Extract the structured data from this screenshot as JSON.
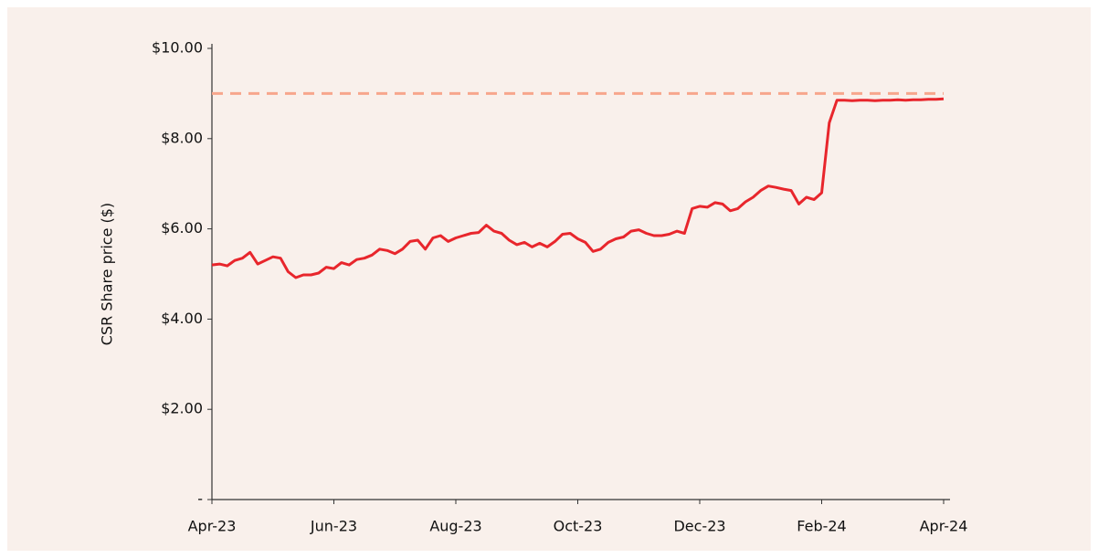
{
  "chart_data": {
    "type": "line",
    "y_label": "CSR Share price ($)",
    "categories": [
      "Apr-23",
      null,
      null,
      null,
      null,
      null,
      null,
      null,
      null,
      null,
      null,
      null,
      null,
      null,
      null,
      null,
      "Jun-23",
      null,
      null,
      null,
      null,
      null,
      null,
      null,
      null,
      null,
      null,
      null,
      null,
      null,
      null,
      null,
      "Aug-23",
      null,
      null,
      null,
      null,
      null,
      null,
      null,
      null,
      null,
      null,
      null,
      null,
      null,
      null,
      null,
      "Oct-23",
      null,
      null,
      null,
      null,
      null,
      null,
      null,
      null,
      null,
      null,
      null,
      null,
      null,
      null,
      null,
      "Dec-23",
      null,
      null,
      null,
      null,
      null,
      null,
      null,
      null,
      null,
      null,
      null,
      null,
      null,
      null,
      null,
      "Feb-24",
      null,
      null,
      null,
      null,
      null,
      null,
      null,
      null,
      null,
      null,
      null,
      null,
      null,
      null,
      null,
      "Apr-24"
    ],
    "series": [
      {
        "name": "CSR Share price",
        "color": "#e8262c",
        "values": [
          5.2,
          5.22,
          5.18,
          5.3,
          5.35,
          5.48,
          5.22,
          5.3,
          5.38,
          5.35,
          5.05,
          4.92,
          4.98,
          4.98,
          5.02,
          5.15,
          5.12,
          5.25,
          5.2,
          5.32,
          5.35,
          5.42,
          5.55,
          5.52,
          5.45,
          5.55,
          5.72,
          5.75,
          5.55,
          5.8,
          5.85,
          5.72,
          5.8,
          5.85,
          5.9,
          5.92,
          6.08,
          5.95,
          5.9,
          5.75,
          5.65,
          5.7,
          5.6,
          5.68,
          5.6,
          5.72,
          5.88,
          5.9,
          5.78,
          5.7,
          5.5,
          5.55,
          5.7,
          5.78,
          5.82,
          5.95,
          5.98,
          5.9,
          5.85,
          5.85,
          5.88,
          5.95,
          5.9,
          6.45,
          6.5,
          6.48,
          6.58,
          6.55,
          6.4,
          6.45,
          6.6,
          6.7,
          6.85,
          6.95,
          6.92,
          6.88,
          6.85,
          6.55,
          6.7,
          6.65,
          6.8,
          8.35,
          8.85,
          8.85,
          8.84,
          8.85,
          8.85,
          8.84,
          8.85,
          8.85,
          8.86,
          8.85,
          8.86,
          8.86,
          8.87,
          8.87,
          8.88
        ]
      }
    ],
    "reference_line": {
      "value": 9,
      "color": "#f7a68c",
      "dashed": true
    },
    "ylim": [
      0,
      10
    ],
    "yticks": [
      {
        "value": 0,
        "label": "-"
      },
      {
        "value": 2,
        "label": "$2.00"
      },
      {
        "value": 4,
        "label": "$4.00"
      },
      {
        "value": 6,
        "label": "$6.00"
      },
      {
        "value": 8,
        "label": "$8.00"
      },
      {
        "value": 10,
        "label": "$10.00"
      }
    ],
    "grid": false
  }
}
